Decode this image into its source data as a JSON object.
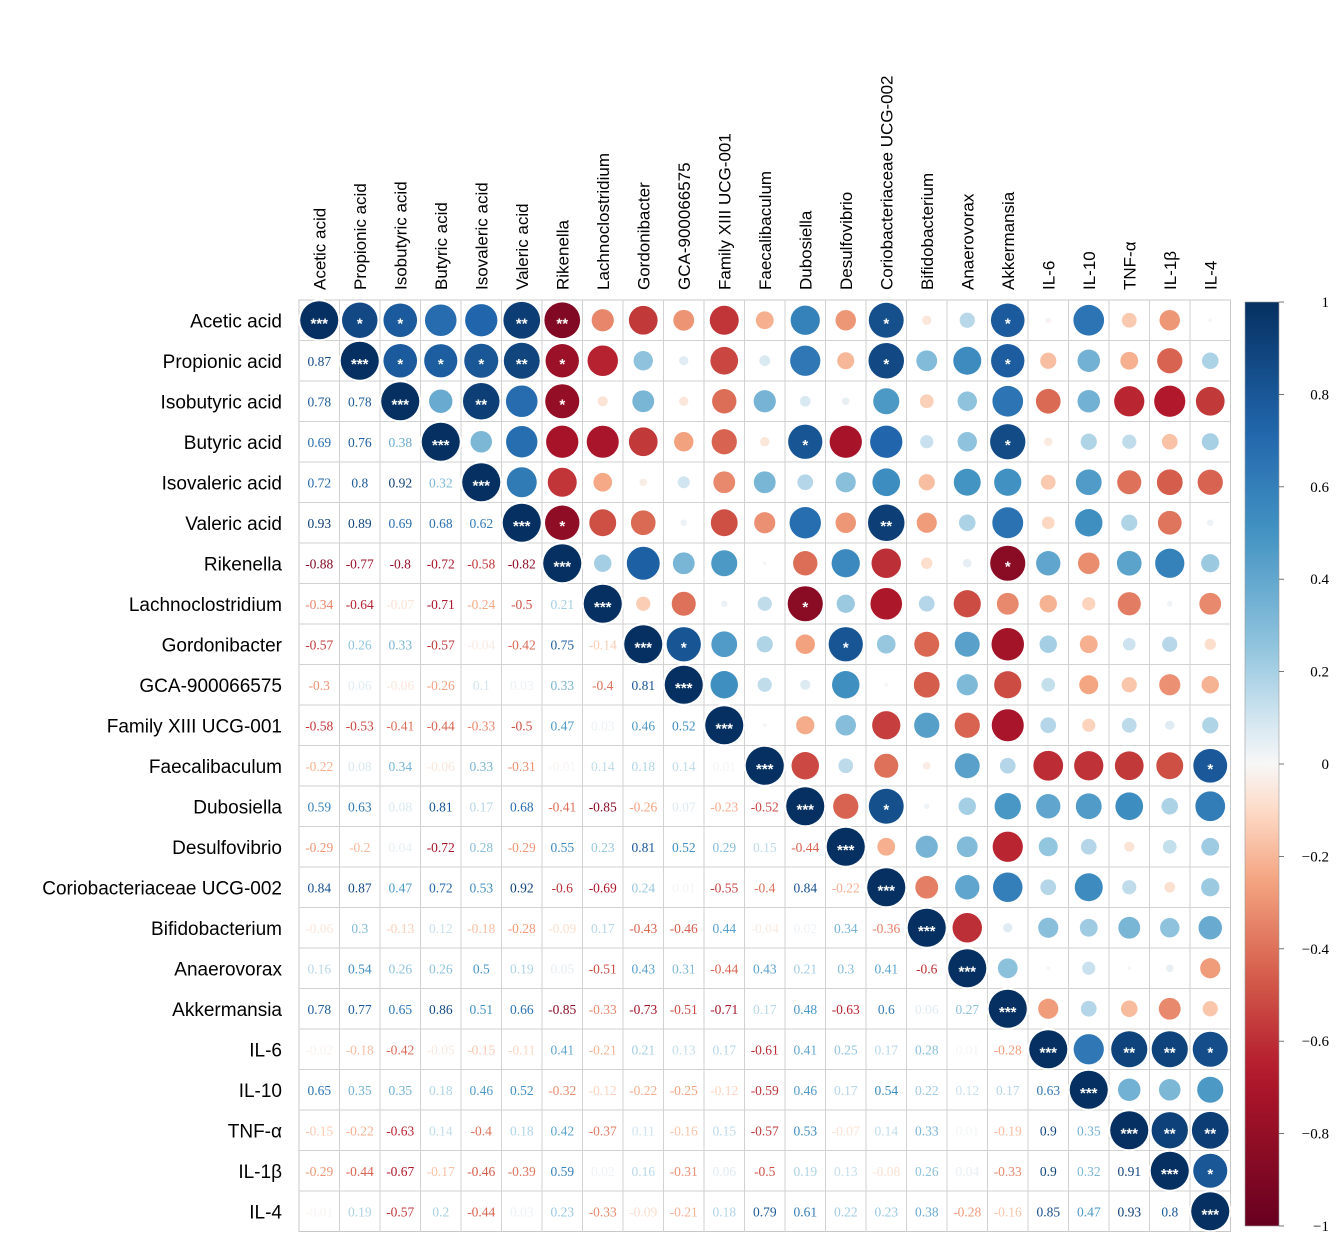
{
  "chart_data": {
    "type": "heatmap",
    "title": "",
    "labels": [
      "Acetic acid",
      "Propionic acid",
      "Isobutyric acid",
      "Butyric acid",
      "Isovaleric acid",
      "Valeric acid",
      "Rikenella",
      "Lachnoclostridium",
      "Gordonibacter",
      "GCA-900066575",
      "Family XIII UCG-001",
      "Faecalibaculum",
      "Dubosiella",
      "Desulfovibrio",
      "Coriobacteriaceae UCG-002",
      "Bifidobacterium",
      "Anaerovorax",
      "Akkermansia",
      "IL-6",
      "IL-10",
      "TNF-α",
      "IL-1β",
      "IL-4"
    ],
    "lower_triangle": [
      [],
      [
        "0.87"
      ],
      [
        "0.78",
        "0.78"
      ],
      [
        "0.69",
        "0.76",
        "0.38"
      ],
      [
        "0.72",
        "0.8",
        "0.92",
        "0.32"
      ],
      [
        "0.93",
        "0.89",
        "0.69",
        "0.68",
        "0.62"
      ],
      [
        "-0.88",
        "-0.77",
        "-0.8",
        "-0.72",
        "-0.58",
        "-0.82"
      ],
      [
        "-0.34",
        "-0.64",
        "-0.07",
        "-0.71",
        "-0.24",
        "-0.5",
        "0.21"
      ],
      [
        "-0.57",
        "0.26",
        "0.33",
        "-0.57",
        "-0.04",
        "-0.42",
        "0.75",
        "-0.14"
      ],
      [
        "-0.3",
        "0.06",
        "-0.06",
        "-0.26",
        "0.1",
        "0.03",
        "0.33",
        "-0.4",
        "0.81"
      ],
      [
        "-0.58",
        "-0.53",
        "-0.41",
        "-0.44",
        "-0.33",
        "-0.5",
        "0.47",
        "0.03",
        "0.46",
        "0.52"
      ],
      [
        "-0.22",
        "0.08",
        "0.34",
        "-0.06",
        "0.33",
        "-0.31",
        "-0.01",
        "0.14",
        "0.18",
        "0.14",
        "0.01"
      ],
      [
        "0.59",
        "0.63",
        "0.08",
        "0.81",
        "0.17",
        "0.68",
        "-0.41",
        "-0.85",
        "-0.26",
        "0.07",
        "-0.23",
        "-0.52"
      ],
      [
        "-0.29",
        "-0.2",
        "0.04",
        "-0.72",
        "0.28",
        "-0.29",
        "0.55",
        "0.23",
        "0.81",
        "0.52",
        "0.29",
        "0.15",
        "-0.44"
      ],
      [
        "0.84",
        "0.87",
        "0.47",
        "0.72",
        "0.53",
        "0.92",
        "-0.6",
        "-0.69",
        "0.24",
        "0.01",
        "-0.55",
        "-0.4",
        "0.84",
        "-0.22"
      ],
      [
        "-0.06",
        "0.3",
        "-0.13",
        "0.12",
        "-0.18",
        "-0.28",
        "-0.09",
        "0.17",
        "-0.43",
        "-0.46",
        "0.44",
        "-0.04",
        "0.02",
        "0.34",
        "-0.36"
      ],
      [
        "0.16",
        "0.54",
        "0.26",
        "0.26",
        "0.5",
        "0.19",
        "0.05",
        "-0.51",
        "0.43",
        "0.31",
        "-0.44",
        "0.43",
        "0.21",
        "0.3",
        "0.41",
        "-0.6"
      ],
      [
        "0.78",
        "0.77",
        "0.65",
        "0.86",
        "0.51",
        "0.66",
        "-0.85",
        "-0.33",
        "-0.73",
        "-0.51",
        "-0.71",
        "0.17",
        "0.48",
        "-0.63",
        "0.6",
        "0.06",
        "0.27"
      ],
      [
        "-0.02",
        "-0.18",
        "-0.42",
        "-0.05",
        "-0.15",
        "-0.11",
        "0.41",
        "-0.21",
        "0.21",
        "0.13",
        "0.17",
        "-0.61",
        "0.41",
        "0.25",
        "0.17",
        "0.28",
        "0.01",
        "-0.28"
      ],
      [
        "0.65",
        "0.35",
        "0.35",
        "0.18",
        "0.46",
        "0.52",
        "-0.32",
        "-0.12",
        "-0.22",
        "-0.25",
        "-0.12",
        "-0.59",
        "0.46",
        "0.17",
        "0.54",
        "0.22",
        "0.12",
        "0.17",
        "0.63"
      ],
      [
        "-0.15",
        "-0.22",
        "-0.63",
        "0.14",
        "-0.4",
        "0.18",
        "0.42",
        "-0.37",
        "0.11",
        "-0.16",
        "0.15",
        "-0.57",
        "0.53",
        "-0.07",
        "0.14",
        "0.33",
        "0.01",
        "-0.19",
        "0.9",
        "0.35"
      ],
      [
        "-0.29",
        "-0.44",
        "-0.67",
        "-0.17",
        "-0.46",
        "-0.39",
        "0.59",
        "0.02",
        "0.16",
        "-0.31",
        "0.06",
        "-0.5",
        "0.19",
        "0.13",
        "-0.08",
        "0.26",
        "0.04",
        "-0.33",
        "0.9",
        "0.32",
        "0.91"
      ],
      [
        "-0.01",
        "0.19",
        "-0.57",
        "0.2",
        "-0.44",
        "0.03",
        "0.23",
        "-0.33",
        "-0.09",
        "-0.21",
        "0.18",
        "0.79",
        "0.61",
        "0.22",
        "0.23",
        "0.38",
        "-0.28",
        "-0.16",
        "0.85",
        "0.47",
        "0.93",
        "0.8"
      ]
    ],
    "significance": [
      {
        "row": 0,
        "col": 0,
        "stars": "***"
      },
      {
        "row": 0,
        "col": 1,
        "stars": "*"
      },
      {
        "row": 0,
        "col": 2,
        "stars": "*"
      },
      {
        "row": 0,
        "col": 5,
        "stars": "**"
      },
      {
        "row": 0,
        "col": 6,
        "stars": "**"
      },
      {
        "row": 0,
        "col": 14,
        "stars": "*"
      },
      {
        "row": 0,
        "col": 17,
        "stars": "*"
      },
      {
        "row": 1,
        "col": 1,
        "stars": "***"
      },
      {
        "row": 1,
        "col": 2,
        "stars": "*"
      },
      {
        "row": 1,
        "col": 3,
        "stars": "*"
      },
      {
        "row": 1,
        "col": 4,
        "stars": "*"
      },
      {
        "row": 1,
        "col": 5,
        "stars": "**"
      },
      {
        "row": 1,
        "col": 6,
        "stars": "*"
      },
      {
        "row": 1,
        "col": 14,
        "stars": "*"
      },
      {
        "row": 1,
        "col": 17,
        "stars": "*"
      },
      {
        "row": 2,
        "col": 2,
        "stars": "***"
      },
      {
        "row": 2,
        "col": 4,
        "stars": "**"
      },
      {
        "row": 2,
        "col": 6,
        "stars": "*"
      },
      {
        "row": 3,
        "col": 3,
        "stars": "***"
      },
      {
        "row": 3,
        "col": 12,
        "stars": "*"
      },
      {
        "row": 3,
        "col": 17,
        "stars": "*"
      },
      {
        "row": 4,
        "col": 4,
        "stars": "***"
      },
      {
        "row": 5,
        "col": 5,
        "stars": "***"
      },
      {
        "row": 5,
        "col": 6,
        "stars": "*"
      },
      {
        "row": 5,
        "col": 14,
        "stars": "**"
      },
      {
        "row": 6,
        "col": 6,
        "stars": "***"
      },
      {
        "row": 6,
        "col": 17,
        "stars": "*"
      },
      {
        "row": 7,
        "col": 7,
        "stars": "***"
      },
      {
        "row": 7,
        "col": 12,
        "stars": "*"
      },
      {
        "row": 8,
        "col": 8,
        "stars": "***"
      },
      {
        "row": 8,
        "col": 9,
        "stars": "*"
      },
      {
        "row": 8,
        "col": 13,
        "stars": "*"
      },
      {
        "row": 9,
        "col": 9,
        "stars": "***"
      },
      {
        "row": 10,
        "col": 10,
        "stars": "***"
      },
      {
        "row": 11,
        "col": 11,
        "stars": "***"
      },
      {
        "row": 11,
        "col": 22,
        "stars": "*"
      },
      {
        "row": 12,
        "col": 12,
        "stars": "***"
      },
      {
        "row": 12,
        "col": 14,
        "stars": "*"
      },
      {
        "row": 13,
        "col": 13,
        "stars": "***"
      },
      {
        "row": 14,
        "col": 14,
        "stars": "***"
      },
      {
        "row": 15,
        "col": 15,
        "stars": "***"
      },
      {
        "row": 16,
        "col": 16,
        "stars": "***"
      },
      {
        "row": 17,
        "col": 17,
        "stars": "***"
      },
      {
        "row": 18,
        "col": 18,
        "stars": "***"
      },
      {
        "row": 18,
        "col": 20,
        "stars": "**"
      },
      {
        "row": 18,
        "col": 21,
        "stars": "**"
      },
      {
        "row": 18,
        "col": 22,
        "stars": "*"
      },
      {
        "row": 19,
        "col": 19,
        "stars": "***"
      },
      {
        "row": 20,
        "col": 20,
        "stars": "***"
      },
      {
        "row": 20,
        "col": 21,
        "stars": "**"
      },
      {
        "row": 20,
        "col": 22,
        "stars": "**"
      },
      {
        "row": 21,
        "col": 21,
        "stars": "***"
      },
      {
        "row": 21,
        "col": 22,
        "stars": "*"
      },
      {
        "row": 22,
        "col": 22,
        "stars": "***"
      }
    ],
    "colorbar": {
      "ticks": [
        "1",
        "0.8",
        "0.6",
        "0.4",
        "0.2",
        "0",
        "−0.2",
        "−0.4",
        "−0.6",
        "−0.8",
        "−1"
      ],
      "range": [
        -1,
        1
      ]
    },
    "colors": {
      "strong_negative": "#67001f",
      "negative": "#d6604d",
      "light_negative": "#fddbc7",
      "neutral": "#f7f7f7",
      "light_positive": "#d1e5f0",
      "positive": "#4393c3",
      "strong_positive": "#053061"
    }
  }
}
